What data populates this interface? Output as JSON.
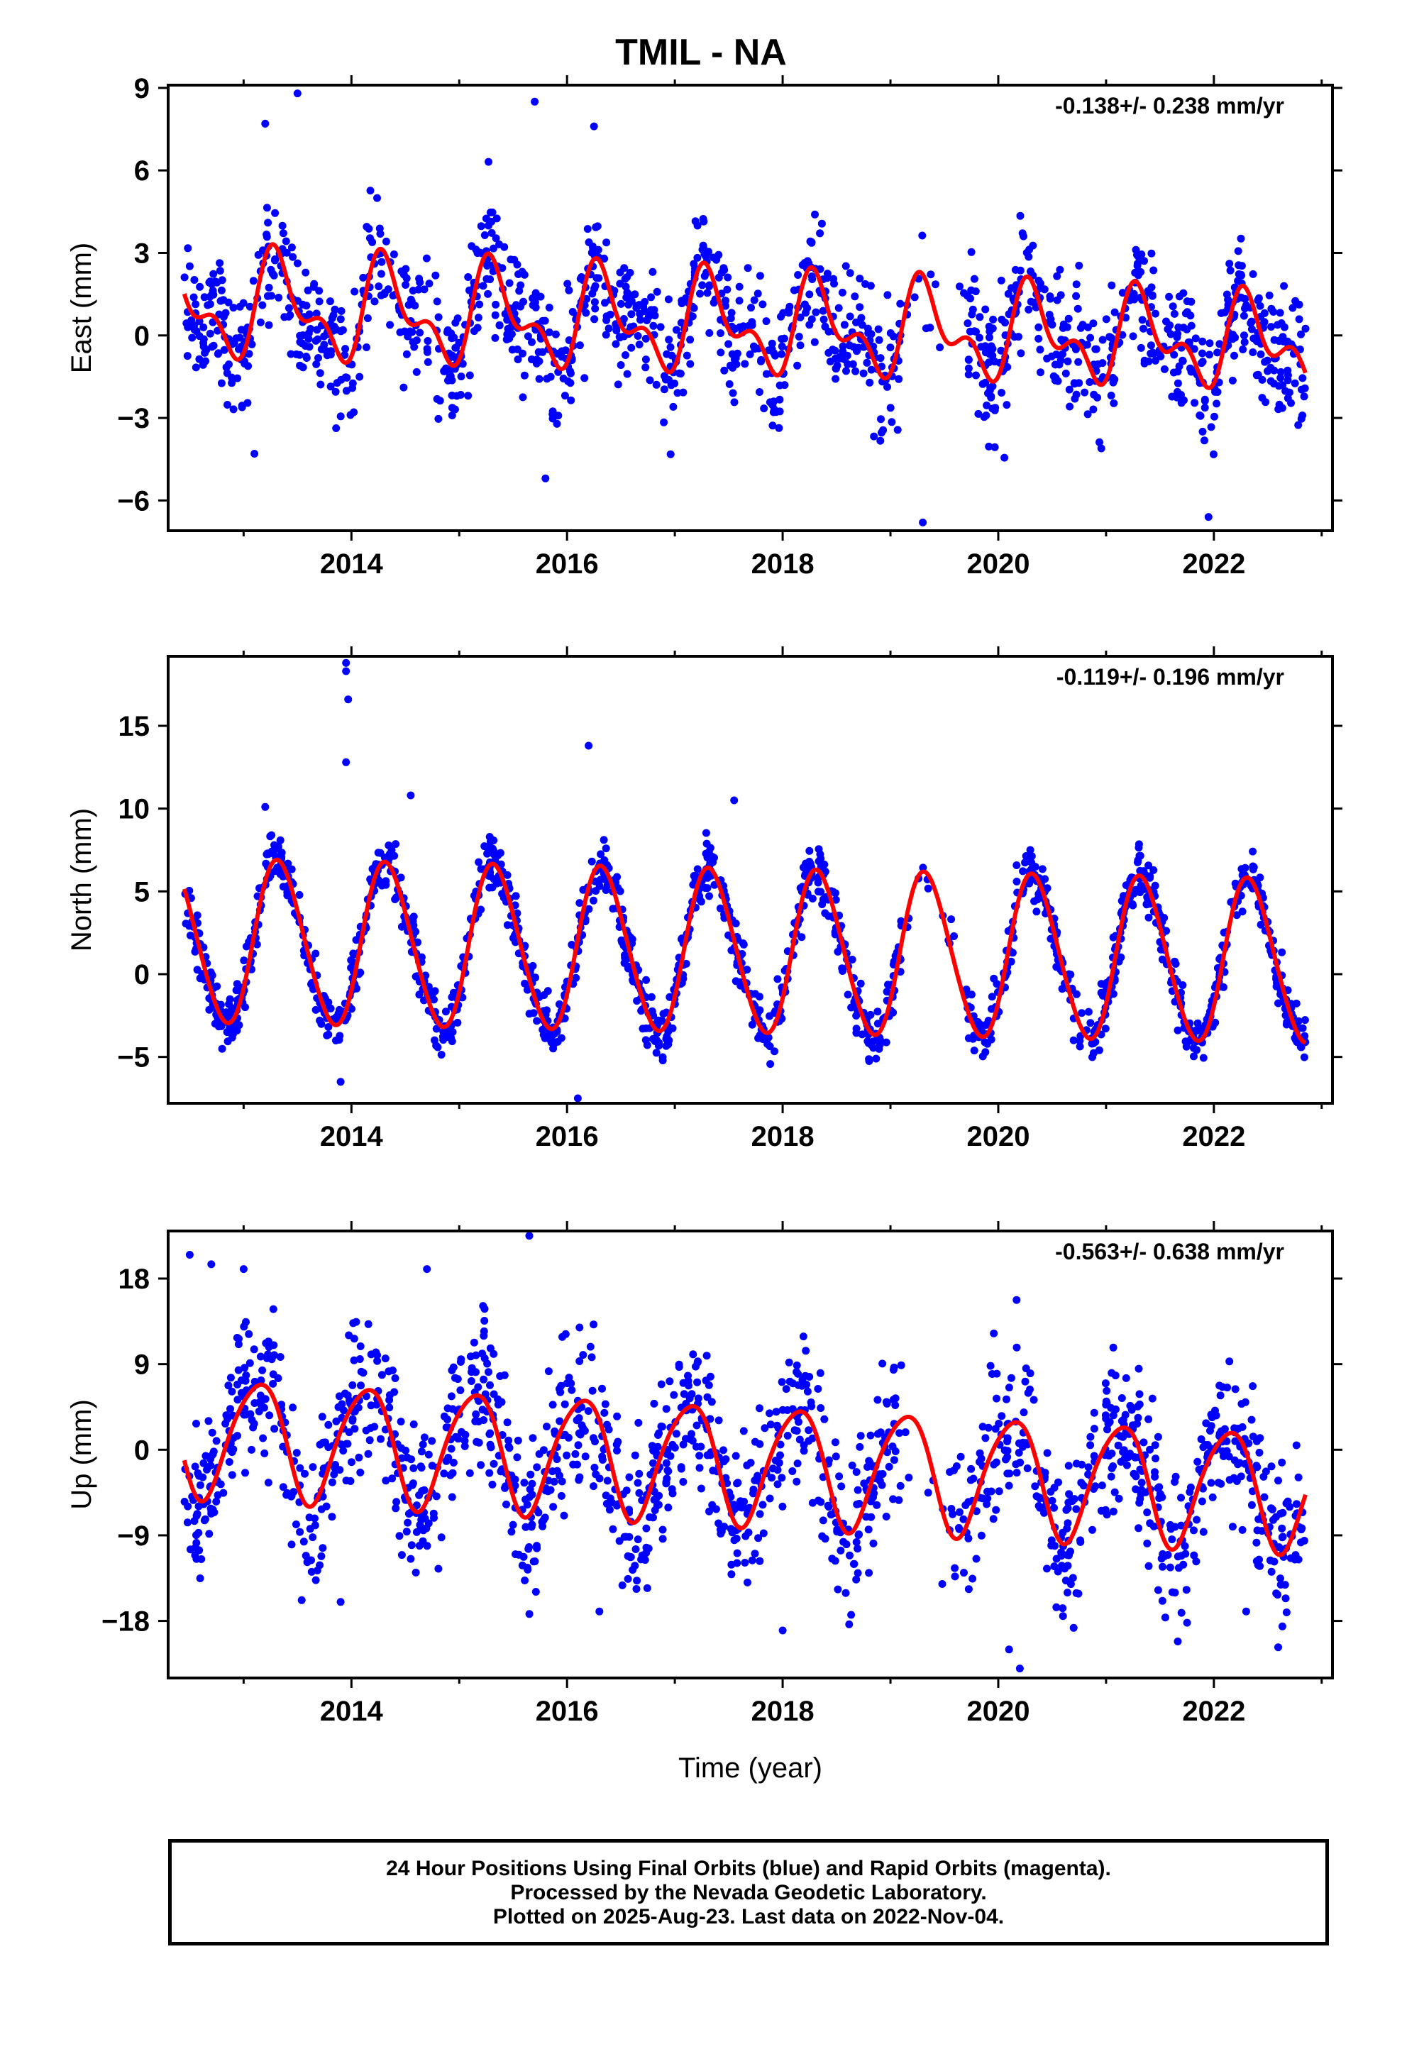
{
  "header": {
    "title": "TMIL - NA"
  },
  "colors": {
    "final_orbits": "#0000ff",
    "fit_curve": "#ff0000",
    "axes": "#000000"
  },
  "footer": {
    "line1": "24 Hour Positions Using Final Orbits (blue) and Rapid Orbits (magenta).",
    "line2": "Processed by the Nevada Geodetic Laboratory.",
    "line3": "Plotted on 2025-Aug-23. Last data on 2022-Nov-04."
  },
  "chart_data": [
    {
      "type": "scatter",
      "ylabel": "East (mm)",
      "xlabel": "",
      "rate": "-0.138+/- 0.238 mm/yr",
      "xlim": [
        2012.3,
        2023.1
      ],
      "ylim": [
        -7.1,
        9.1
      ],
      "x_ticks": [
        2014,
        2016,
        2018,
        2020,
        2022
      ],
      "y_ticks": [
        -6,
        -3,
        0,
        3,
        6,
        9
      ],
      "y_tick_labels": [
        "−6",
        "−3",
        "0",
        "3",
        "6",
        "9"
      ],
      "grid": false,
      "fit": {
        "annual_amp": 1.6,
        "annual_phase": 0.08,
        "semi_amp": 0.9,
        "semi_phase": 0.12,
        "offset": 1.1,
        "trend": -0.138,
        "amp_decay": -0.02,
        "start": 2012.45,
        "end": 2022.85
      },
      "scatter": {
        "noise": 1.15,
        "count": 1500,
        "gap": [
          2019.1,
          2019.7
        ],
        "outliers": [
          [
            2013.5,
            8.8
          ],
          [
            2013.2,
            7.7
          ],
          [
            2015.7,
            8.5
          ],
          [
            2016.25,
            7.6
          ],
          [
            2019.3,
            -6.8
          ],
          [
            2021.95,
            -6.6
          ],
          [
            2015.8,
            -5.2
          ],
          [
            2013.1,
            -4.3
          ]
        ]
      }
    },
    {
      "type": "scatter",
      "ylabel": "North (mm)",
      "xlabel": "",
      "rate": "-0.119+/- 0.196 mm/yr",
      "xlim": [
        2012.3,
        2023.1
      ],
      "ylim": [
        -7.8,
        19.2
      ],
      "x_ticks": [
        2014,
        2016,
        2018,
        2020,
        2022
      ],
      "y_ticks": [
        -5,
        0,
        5,
        10,
        15
      ],
      "y_tick_labels": [
        "−5",
        "0",
        "5",
        "10",
        "15"
      ],
      "grid": false,
      "fit": {
        "annual_amp": 4.9,
        "annual_phase": 0.08,
        "semi_amp": 0.4,
        "semi_phase": 0.1,
        "offset": 1.95,
        "trend": -0.119,
        "amp_decay": 0.0,
        "start": 2012.45,
        "end": 2022.85
      },
      "scatter": {
        "noise": 0.85,
        "count": 1600,
        "gap": [
          2019.1,
          2019.7
        ],
        "outliers": [
          [
            2013.95,
            18.8
          ],
          [
            2013.95,
            18.3
          ],
          [
            2013.97,
            16.6
          ],
          [
            2013.95,
            12.8
          ],
          [
            2016.2,
            13.8
          ],
          [
            2013.2,
            10.1
          ],
          [
            2014.55,
            10.8
          ],
          [
            2017.55,
            10.5
          ],
          [
            2016.1,
            -7.5
          ],
          [
            2013.9,
            -6.5
          ]
        ]
      }
    },
    {
      "type": "scatter",
      "ylabel": "Up (mm)",
      "xlabel": "Time (year)",
      "rate": "-0.563+/- 0.638 mm/yr",
      "xlim": [
        2012.3,
        2023.1
      ],
      "ylim": [
        -24,
        23
      ],
      "x_ticks": [
        2014,
        2016,
        2018,
        2020,
        2022
      ],
      "y_ticks": [
        -18,
        -9,
        0,
        9,
        18
      ],
      "y_tick_labels": [
        "−18",
        "−9",
        "0",
        "9",
        "18"
      ],
      "grid": false,
      "fit": {
        "annual_amp": 6.2,
        "annual_phase": 0.88,
        "semi_amp": 0.8,
        "semi_phase": 0.2,
        "offset": 1.5,
        "trend": -0.563,
        "amp_decay": 0.0,
        "start": 2012.45,
        "end": 2022.85
      },
      "scatter": {
        "noise": 4.2,
        "count": 1500,
        "gap": [
          2019.1,
          2019.55
        ],
        "outliers": [
          [
            2015.65,
            22.5
          ],
          [
            2012.5,
            20.5
          ],
          [
            2012.7,
            19.5
          ],
          [
            2013.0,
            19.0
          ],
          [
            2014.7,
            19.0
          ],
          [
            2020.2,
            -23.0
          ],
          [
            2020.1,
            -21.0
          ],
          [
            2013.9,
            -16.0
          ],
          [
            2016.3,
            -17.0
          ],
          [
            2018.0,
            -19.0
          ],
          [
            2022.3,
            -17.0
          ]
        ]
      }
    }
  ]
}
